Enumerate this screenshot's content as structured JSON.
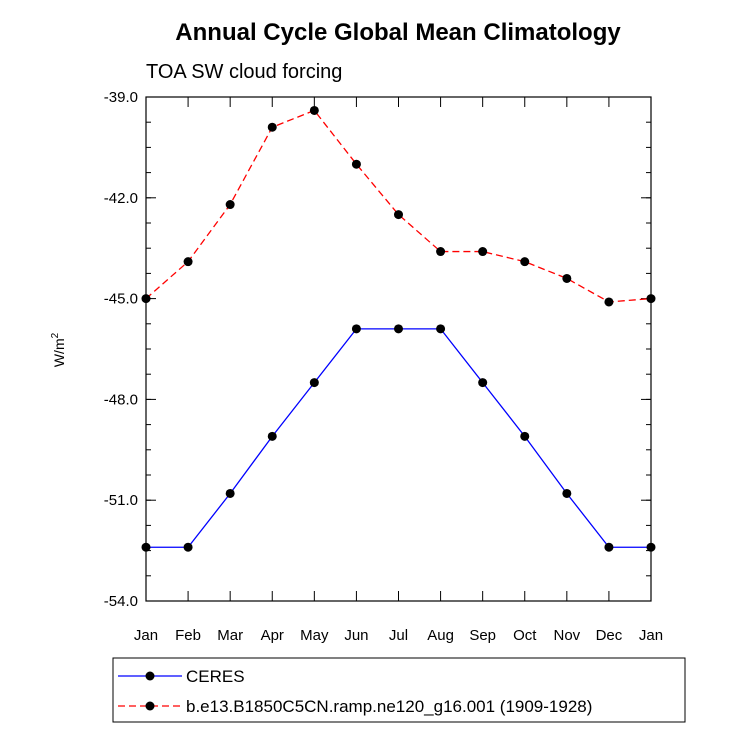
{
  "chart_data": {
    "type": "line",
    "title": "Annual Cycle Global Mean Climatology",
    "subtitle": "TOA SW cloud forcing",
    "ylabel": "W/m",
    "ylabel_sup": "2",
    "xlabel": "",
    "categories": [
      "Jan",
      "Feb",
      "Mar",
      "Apr",
      "May",
      "Jun",
      "Jul",
      "Aug",
      "Sep",
      "Oct",
      "Nov",
      "Dec",
      "Jan"
    ],
    "ylim": [
      -54.0,
      -39.0
    ],
    "yticks": [
      -39.0,
      -42.0,
      -45.0,
      -48.0,
      -51.0,
      -54.0
    ],
    "ytick_labels": [
      "-39.0",
      "-42.0",
      "-45.0",
      "-48.0",
      "-51.0",
      "-54.0"
    ],
    "series": [
      {
        "name": "CERES",
        "color": "#0000ff",
        "line_style": "solid",
        "values": [
          -52.4,
          -52.4,
          -50.8,
          -49.1,
          -47.5,
          -45.9,
          -45.9,
          -45.9,
          -47.5,
          -49.1,
          -50.8,
          -52.4,
          -52.4
        ]
      },
      {
        "name": "b.e13.B1850C5CN.ramp.ne120_g16.001 (1909-1928)",
        "color": "#ff0000",
        "line_style": "dashed",
        "values": [
          -45.0,
          -43.9,
          -42.2,
          -39.9,
          -39.4,
          -41.0,
          -42.5,
          -43.6,
          -43.6,
          -43.9,
          -44.4,
          -45.1,
          -45.0
        ]
      }
    ],
    "legend_position": "bottom",
    "grid": false
  }
}
